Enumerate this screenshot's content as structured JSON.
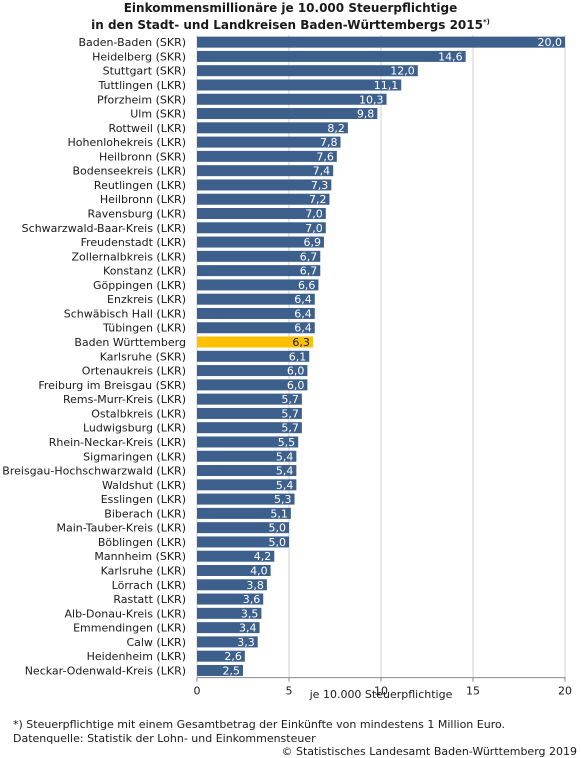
{
  "title_line1": "Einkommensmillionäre je 10.000 Steuerpflichtige",
  "title_line2": "in den Stadt- und Landkreisen Baden-Württembergs 2015",
  "title_marker": "*)",
  "footnote": "*) Steuerpflichtige mit einem Gesamtbetrag der Einkünfte von mindestens 1 Million Euro.",
  "source": "Datenquelle: Statistik der Lohn- und Einkommensteuer",
  "copyright": "© Statistisches Landesamt Baden-Württemberg 2019",
  "colors": {
    "bar": "#3d5f8c",
    "highlight": "#ffc000",
    "grid": "#d0d0d0"
  },
  "chart_data": {
    "type": "bar",
    "orientation": "horizontal",
    "xlabel": "je 10.000 Steuerpflichtige",
    "xlim": [
      0,
      20
    ],
    "xticks": [
      0,
      5,
      10,
      15,
      20
    ],
    "grid": true,
    "highlight_category": "Baden Württemberg",
    "categories": [
      "Baden-Baden (SKR)",
      "Heidelberg (SKR)",
      "Stuttgart (SKR)",
      "Tuttlingen (LKR)",
      "Pforzheim (SKR)",
      "Ulm (SKR)",
      "Rottweil (LKR)",
      "Hohenlohekreis (LKR)",
      "Heilbronn (SKR)",
      "Bodenseekreis (LKR)",
      "Reutlingen (LKR)",
      "Heilbronn (LKR)",
      "Ravensburg (LKR)",
      "Schwarzwald-Baar-Kreis (LKR)",
      "Freudenstadt (LKR)",
      "Zollernalbkreis (LKR)",
      "Konstanz (LKR)",
      "Göppingen (LKR)",
      "Enzkreis (LKR)",
      "Schwäbisch Hall (LKR)",
      "Tübingen (LKR)",
      "Baden Württemberg",
      "Karlsruhe (SKR)",
      "Ortenaukreis (LKR)",
      "Freiburg im Breisgau (SKR)",
      "Rems-Murr-Kreis (LKR)",
      "Ostalbkreis (LKR)",
      "Ludwigsburg (LKR)",
      "Rhein-Neckar-Kreis (LKR)",
      "Sigmaringen (LKR)",
      "Breisgau-Hochschwarzwald (LKR)",
      "Waldshut (LKR)",
      "Esslingen (LKR)",
      "Biberach (LKR)",
      "Main-Tauber-Kreis (LKR)",
      "Böblingen (LKR)",
      "Mannheim (SKR)",
      "Karlsruhe (LKR)",
      "Lörrach (LKR)",
      "Rastatt (LKR)",
      "Alb-Donau-Kreis (LKR)",
      "Emmendingen (LKR)",
      "Calw (LKR)",
      "Heidenheim (LKR)",
      "Neckar-Odenwald-Kreis (LKR)"
    ],
    "values": [
      20.0,
      14.6,
      12.0,
      11.1,
      10.3,
      9.8,
      8.2,
      7.8,
      7.6,
      7.4,
      7.3,
      7.2,
      7.0,
      7.0,
      6.9,
      6.7,
      6.7,
      6.6,
      6.4,
      6.4,
      6.4,
      6.3,
      6.1,
      6.0,
      6.0,
      5.7,
      5.7,
      5.7,
      5.5,
      5.4,
      5.4,
      5.4,
      5.3,
      5.1,
      5.0,
      5.0,
      4.2,
      4.0,
      3.8,
      3.6,
      3.5,
      3.4,
      3.3,
      2.6,
      2.5
    ],
    "value_labels": [
      "20,0",
      "14,6",
      "12,0",
      "11,1",
      "10,3",
      "9,8",
      "8,2",
      "7,8",
      "7,6",
      "7,4",
      "7,3",
      "7,2",
      "7,0",
      "7,0",
      "6,9",
      "6,7",
      "6,7",
      "6,6",
      "6,4",
      "6,4",
      "6,4",
      "6,3",
      "6,1",
      "6,0",
      "6,0",
      "5,7",
      "5,7",
      "5,7",
      "5,5",
      "5,4",
      "5,4",
      "5,4",
      "5,3",
      "5,1",
      "5,0",
      "5,0",
      "4,2",
      "4,0",
      "3,8",
      "3,6",
      "3,5",
      "3,4",
      "3,3",
      "2,6",
      "2,5"
    ]
  }
}
